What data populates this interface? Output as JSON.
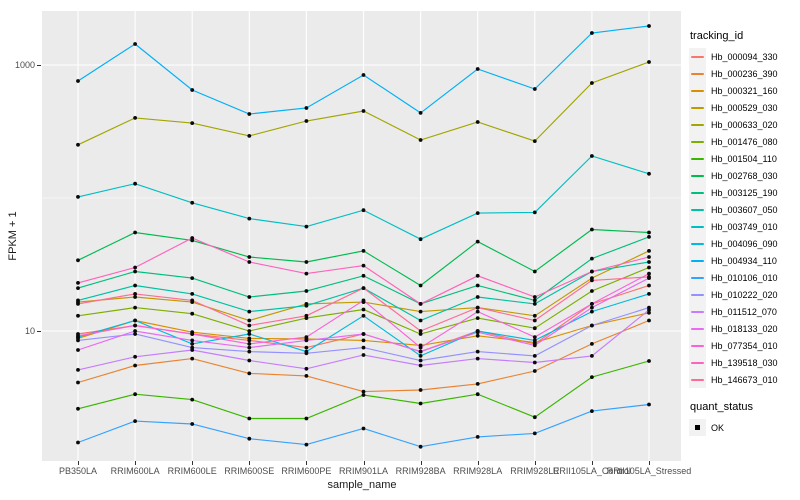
{
  "figure": {
    "background": "#FFFFFF",
    "panel_background": "#EBEBEB",
    "gridline_color": "#FFFFFF",
    "point_color": "#0a0a0a"
  },
  "legend": {
    "title": "tracking_id"
  },
  "quant_legend": {
    "title": "quant_status",
    "ok_label": "OK"
  },
  "axes": {
    "y_ticks": [
      {
        "label": "1000",
        "value": 1000
      },
      {
        "label": "10",
        "value": 10
      }
    ]
  },
  "chart_data": {
    "type": "line",
    "title": "",
    "xlabel": "sample_name",
    "ylabel": "FPKM + 1",
    "y_scale": "log10",
    "ylim": [
      1,
      2500
    ],
    "y_major_breaks": [
      1000,
      10
    ],
    "y_minor_breaks": [
      100
    ],
    "grid": "on",
    "legend_position": "right",
    "quant_status": "OK",
    "categories": [
      "PB350LA",
      "RRIM600LA",
      "RRIM600LE",
      "RRIM600SE",
      "RRIM600PE",
      "RRIM901LA",
      "RRIM928BA",
      "RRIM928LA",
      "RRIM928LE",
      "RRII105LA_Control",
      "RRII105LA_Stressed"
    ],
    "series": [
      {
        "name": "Hb_000094_330",
        "color": "#F8766D",
        "values": [
          9.5,
          11,
          9.5,
          8.5,
          7.5,
          9.5,
          7,
          10,
          8,
          16,
          22
        ]
      },
      {
        "name": "Hb_000236_390",
        "color": "#EA8331",
        "values": [
          4.1,
          5.5,
          6.2,
          4.8,
          4.6,
          3.5,
          3.6,
          4.0,
          5.0,
          8,
          12
        ]
      },
      {
        "name": "Hb_000321_160",
        "color": "#D89000",
        "values": [
          8.8,
          12,
          9.8,
          8.8,
          8.7,
          8.5,
          7.8,
          9.2,
          8.2,
          11,
          13.7
        ]
      },
      {
        "name": "Hb_000529_030",
        "color": "#C09B00",
        "values": [
          16.5,
          18,
          16.5,
          12,
          16,
          16.5,
          14,
          15,
          13,
          25,
          40
        ]
      },
      {
        "name": "Hb_000633_020",
        "color": "#A3A500",
        "values": [
          251,
          400,
          366,
          293,
          379,
          451,
          273,
          373,
          268,
          732,
          1053
        ]
      },
      {
        "name": "Hb_001476_080",
        "color": "#7CAE00",
        "values": [
          13,
          15,
          13.5,
          10,
          12.5,
          14.5,
          9.5,
          12.5,
          10.5,
          20,
          30
        ]
      },
      {
        "name": "Hb_001504_110",
        "color": "#39B600",
        "values": [
          2.6,
          3.35,
          3.05,
          2.2,
          2.2,
          3.3,
          2.85,
          3.35,
          2.25,
          4.5,
          5.95
        ]
      },
      {
        "name": "Hb_002768_030",
        "color": "#00BB4E",
        "values": [
          34,
          55,
          48,
          36,
          33,
          40,
          22,
          47,
          28,
          58,
          55
        ]
      },
      {
        "name": "Hb_003125_190",
        "color": "#00BF7D",
        "values": [
          21,
          28,
          25,
          18,
          20,
          26,
          16,
          22,
          17,
          35,
          51
        ]
      },
      {
        "name": "Hb_003607_050",
        "color": "#00C1A3",
        "values": [
          17,
          22,
          19,
          14,
          15.5,
          21,
          12,
          18,
          16,
          28,
          33
        ]
      },
      {
        "name": "Hb_003749_010",
        "color": "#00BFC4",
        "values": [
          102,
          128,
          92,
          70,
          61,
          81,
          49,
          77,
          78,
          207,
          152
        ]
      },
      {
        "name": "Hb_004096_090",
        "color": "#00BAE0",
        "values": [
          9,
          12,
          8,
          9.5,
          7,
          13,
          6.5,
          10,
          8.5,
          14,
          19
        ]
      },
      {
        "name": "Hb_004934_110",
        "color": "#00B0F6",
        "values": [
          758,
          1438,
          649,
          428,
          475,
          841,
          436,
          933,
          660,
          1740,
          1964
        ]
      },
      {
        "name": "Hb_010106_010",
        "color": "#35A2FF",
        "values": [
          1.45,
          2.1,
          2.0,
          1.55,
          1.4,
          1.85,
          1.35,
          1.6,
          1.7,
          2.5,
          2.8
        ]
      },
      {
        "name": "Hb_010222_020",
        "color": "#9590FF",
        "values": [
          8.5,
          9.5,
          7.5,
          7,
          6.8,
          7.5,
          6,
          7,
          6.5,
          11,
          15
        ]
      },
      {
        "name": "Hb_011512_070",
        "color": "#C77CFF",
        "values": [
          5.1,
          6.4,
          7.2,
          6,
          5.2,
          6.6,
          5.5,
          6.2,
          5.8,
          6.5,
          14.4
        ]
      },
      {
        "name": "Hb_018133_020",
        "color": "#E76BF3",
        "values": [
          7.2,
          10,
          8.5,
          7.5,
          8.5,
          9.5,
          7,
          9.8,
          7.8,
          15,
          25
        ]
      },
      {
        "name": "Hb_077354_010",
        "color": "#FA62DB",
        "values": [
          9.2,
          11,
          9.5,
          8,
          9,
          17,
          7.5,
          14,
          9,
          16,
          27
        ]
      },
      {
        "name": "Hb_139518_030",
        "color": "#FF62BC",
        "values": [
          23,
          30,
          50,
          33,
          27,
          31,
          16,
          26,
          18,
          28,
          36
        ]
      },
      {
        "name": "Hb_146673_010",
        "color": "#FF6A98",
        "values": [
          16,
          19,
          17,
          11,
          13,
          21,
          10,
          15,
          12,
          24,
          25.5
        ]
      }
    ]
  }
}
